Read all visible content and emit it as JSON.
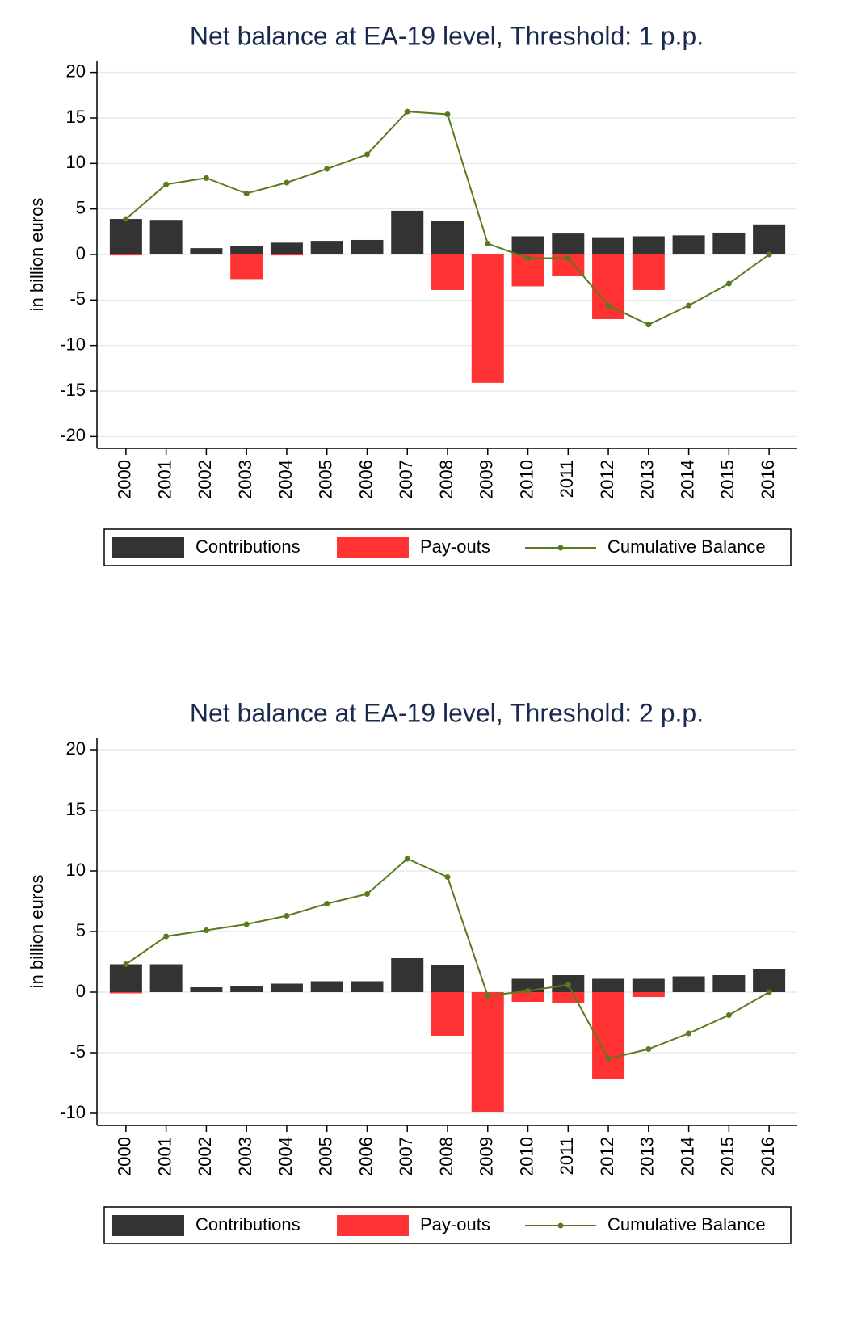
{
  "chart_data": [
    {
      "type": "bar",
      "title": "Net balance at EA-19 level, Threshold: 1 p.p.",
      "y_label": "in billion euros",
      "categories": [
        "2000",
        "2001",
        "2002",
        "2003",
        "2004",
        "2005",
        "2006",
        "2007",
        "2008",
        "2009",
        "2010",
        "2011",
        "2012",
        "2013",
        "2014",
        "2015",
        "2016"
      ],
      "series": [
        {
          "name": "Contributions",
          "type": "bar",
          "color": "#333333",
          "values": [
            3.9,
            3.8,
            0.7,
            0.9,
            1.3,
            1.5,
            1.6,
            4.8,
            3.7,
            0,
            2.0,
            2.3,
            1.9,
            2.0,
            2.1,
            2.4,
            3.3
          ]
        },
        {
          "name": "Pay-outs",
          "type": "bar",
          "color": "#ff3333",
          "values": [
            -0.1,
            0,
            0,
            -2.7,
            -0.1,
            0,
            0,
            0,
            -3.9,
            -14.1,
            -3.5,
            -2.4,
            -7.1,
            -3.9,
            0,
            0,
            0
          ]
        },
        {
          "name": "Cumulative Balance",
          "type": "line",
          "color": "#5a7a1e",
          "values": [
            3.9,
            7.7,
            8.4,
            6.7,
            7.9,
            9.4,
            11.0,
            15.7,
            15.4,
            1.2,
            -0.4,
            -0.4,
            -5.6,
            -7.7,
            -5.6,
            -3.2,
            0
          ]
        }
      ],
      "ylim": [
        -21.3,
        21.3
      ],
      "yticks": [
        -20,
        -15,
        -10,
        -5,
        0,
        5,
        10,
        15,
        20
      ],
      "grid": true
    },
    {
      "type": "bar",
      "title": "Net balance at EA-19 level, Threshold: 2 p.p.",
      "y_label": "in billion euros",
      "categories": [
        "2000",
        "2001",
        "2002",
        "2003",
        "2004",
        "2005",
        "2006",
        "2007",
        "2008",
        "2009",
        "2010",
        "2011",
        "2012",
        "2013",
        "2014",
        "2015",
        "2016"
      ],
      "series": [
        {
          "name": "Contributions",
          "type": "bar",
          "color": "#333333",
          "values": [
            2.3,
            2.3,
            0.4,
            0.5,
            0.7,
            0.9,
            0.9,
            2.8,
            2.2,
            0,
            1.1,
            1.4,
            1.1,
            1.1,
            1.3,
            1.4,
            1.9
          ]
        },
        {
          "name": "Pay-outs",
          "type": "bar",
          "color": "#ff3333",
          "values": [
            -0.1,
            0,
            0,
            0,
            0,
            0,
            0,
            0,
            -3.6,
            -9.9,
            -0.8,
            -0.9,
            -7.2,
            -0.4,
            0,
            0,
            0
          ]
        },
        {
          "name": "Cumulative Balance",
          "type": "line",
          "color": "#5a7a1e",
          "values": [
            2.3,
            4.6,
            5.1,
            5.6,
            6.3,
            7.3,
            8.1,
            11.0,
            9.5,
            -0.3,
            0.1,
            0.6,
            -5.5,
            -4.7,
            -3.4,
            -1.9,
            0
          ]
        }
      ],
      "ylim": [
        -11,
        21
      ],
      "yticks": [
        -10,
        -5,
        0,
        5,
        10,
        15,
        20
      ],
      "grid": true
    }
  ]
}
